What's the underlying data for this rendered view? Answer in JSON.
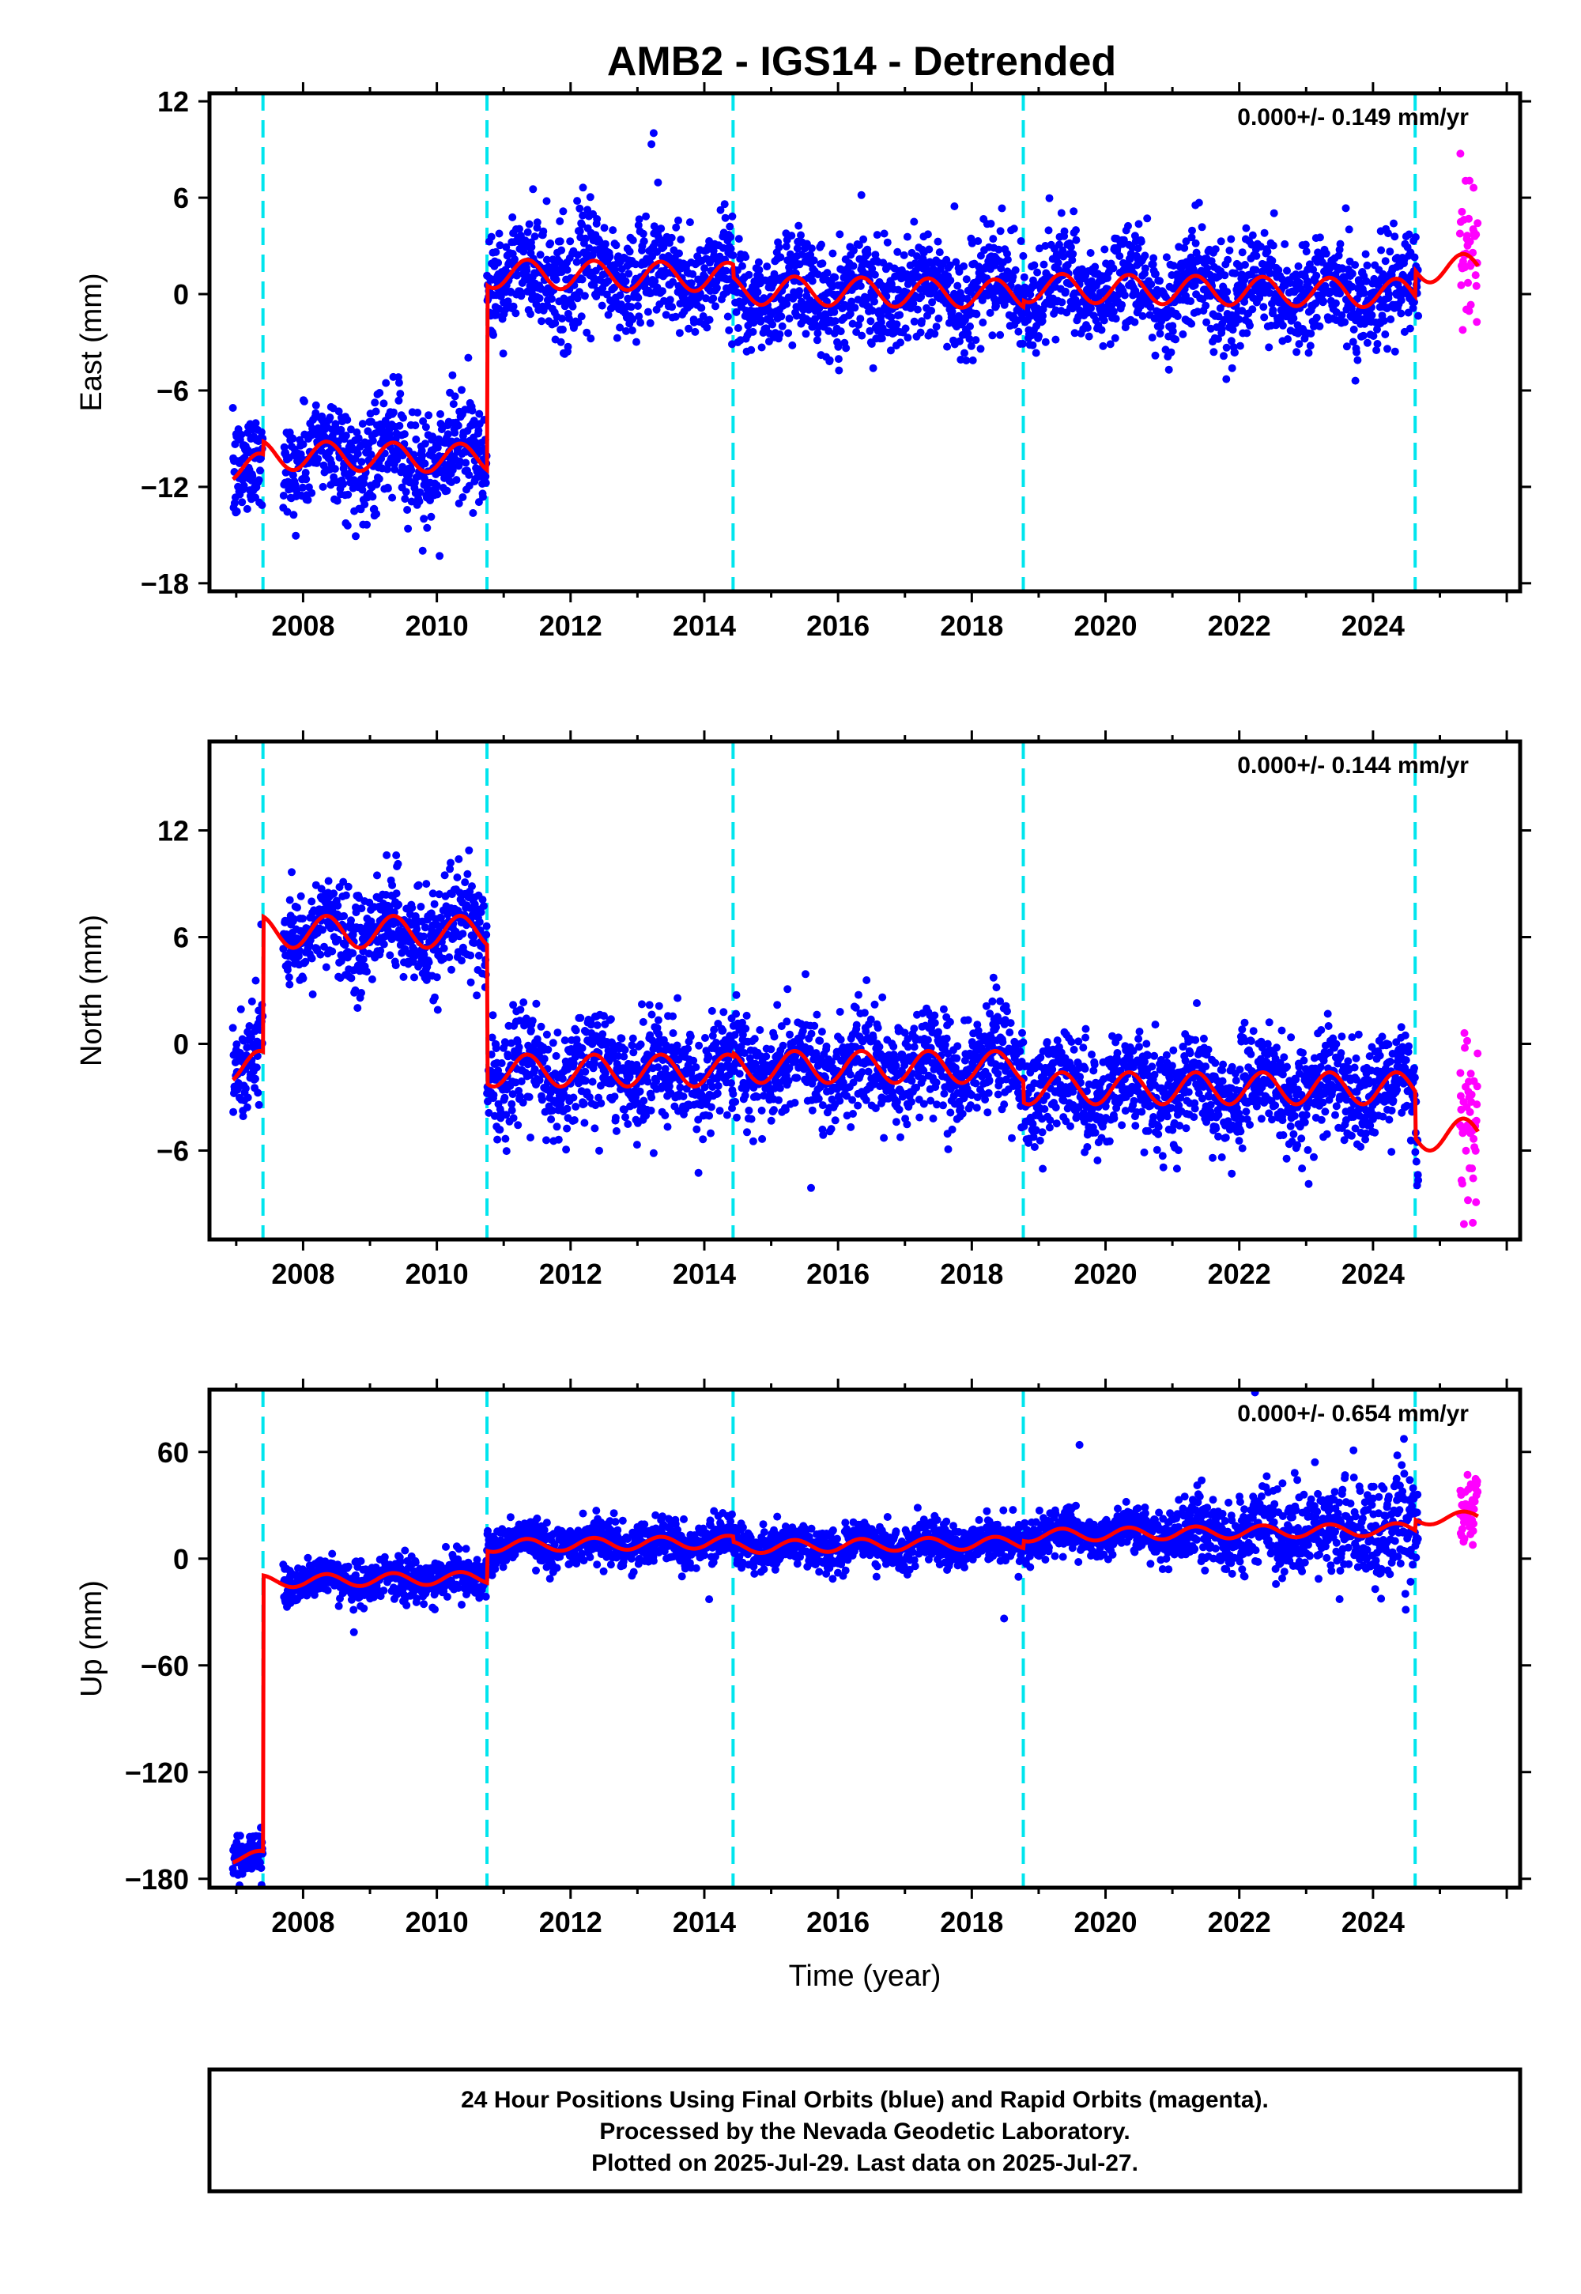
{
  "page_title": "AMB2 - IGS14 - Detrended",
  "xlabel": "Time (year)",
  "footer": {
    "line1": "24 Hour Positions Using Final Orbits (blue) and Rapid Orbits (magenta).",
    "line2": "Processed by the Nevada Geodetic Laboratory.",
    "line3": "Plotted on 2025-Jul-29. Last data on 2025-Jul-27."
  },
  "colors": {
    "final_orbits": "#0000ff",
    "rapid_orbits": "#ff00ff",
    "model_fit": "#ff0000",
    "event_lines": "#00e5ee"
  },
  "chart_data": [
    {
      "type": "scatter",
      "ylabel": "East (mm)",
      "rate_text": "0.000+/- 0.149 mm/yr",
      "xlim": [
        2006.6,
        2026.2
      ],
      "ylim": [
        -18.5,
        12.5
      ],
      "x_ticks": [
        2008,
        2010,
        2012,
        2014,
        2016,
        2018,
        2020,
        2022,
        2024
      ],
      "y_ticks": [
        -18,
        -12,
        -6,
        0,
        6,
        12
      ],
      "y_tick_labels": [
        "−18",
        "−12",
        "−6",
        "0",
        "6",
        "12"
      ],
      "event_lines": [
        2007.4,
        2010.75,
        2014.43,
        2018.77,
        2024.63
      ],
      "final_data_range": [
        2006.95,
        2024.68
      ],
      "rapid_data_range": [
        2025.0,
        2025.57
      ],
      "steps": [
        {
          "t": 2007.4,
          "delta": 0.8
        },
        {
          "t": 2010.75,
          "delta": 11.5
        },
        {
          "t": 2014.43,
          "delta": -0.8
        },
        {
          "t": 2018.77,
          "delta": 0.4
        },
        {
          "t": 2024.63,
          "delta": 1.6
        }
      ],
      "base_level": -10.8,
      "linear_drift_mm_per_yr": -0.06,
      "seasonal_amplitude": 0.9,
      "scatter_sd": 1.6,
      "series": [
        {
          "name": "Final Orbits (blue)"
        },
        {
          "name": "Rapid Orbits (magenta)"
        }
      ]
    },
    {
      "type": "scatter",
      "ylabel": "North (mm)",
      "rate_text": "0.000+/- 0.144 mm/yr",
      "xlim": [
        2006.6,
        2026.2
      ],
      "ylim": [
        -11,
        17
      ],
      "x_ticks": [
        2008,
        2010,
        2012,
        2014,
        2016,
        2018,
        2020,
        2022,
        2024
      ],
      "y_ticks": [
        -6,
        0,
        6,
        12
      ],
      "y_tick_labels": [
        "−6",
        "0",
        "6",
        "12"
      ],
      "event_lines": [
        2007.4,
        2010.75,
        2014.43,
        2018.77,
        2024.63
      ],
      "final_data_range": [
        2006.95,
        2024.68
      ],
      "rapid_data_range": [
        2025.0,
        2025.57
      ],
      "steps": [
        {
          "t": 2007.4,
          "delta": 7.6
        },
        {
          "t": 2010.75,
          "delta": -7.8
        },
        {
          "t": 2014.43,
          "delta": 0.2
        },
        {
          "t": 2018.77,
          "delta": -1.2
        },
        {
          "t": 2024.63,
          "delta": -2.6
        }
      ],
      "base_level": -1.3,
      "linear_drift_mm_per_yr": 0.0,
      "seasonal_amplitude": 0.9,
      "scatter_sd": 1.4,
      "series": [
        {
          "name": "Final Orbits (blue)"
        },
        {
          "name": "Rapid Orbits (magenta)"
        }
      ]
    },
    {
      "type": "scatter",
      "ylabel": "Up (mm)",
      "rate_text": "0.000+/- 0.654 mm/yr",
      "xlim": [
        2006.6,
        2026.2
      ],
      "ylim": [
        -185,
        95
      ],
      "x_ticks": [
        2008,
        2010,
        2012,
        2014,
        2016,
        2018,
        2020,
        2022,
        2024
      ],
      "y_ticks": [
        -180,
        -120,
        -60,
        0,
        60
      ],
      "y_tick_labels": [
        "−180",
        "−120",
        "−60",
        "0",
        "60"
      ],
      "event_lines": [
        2007.4,
        2010.75,
        2014.43,
        2018.77,
        2024.63
      ],
      "final_data_range": [
        2006.95,
        2024.68
      ],
      "rapid_data_range": [
        2025.0,
        2025.57
      ],
      "steps": [
        {
          "t": 2007.4,
          "delta": 155
        },
        {
          "t": 2010.75,
          "delta": 18
        },
        {
          "t": 2014.43,
          "delta": -3
        },
        {
          "t": 2018.77,
          "delta": 4
        },
        {
          "t": 2024.63,
          "delta": 6
        }
      ],
      "base_level": -168,
      "linear_drift_mm_per_yr": 0.6,
      "seasonal_amplitude": 3.5,
      "scatter_sd": 6,
      "series": [
        {
          "name": "Final Orbits (blue)"
        },
        {
          "name": "Rapid Orbits (magenta)"
        }
      ]
    }
  ]
}
